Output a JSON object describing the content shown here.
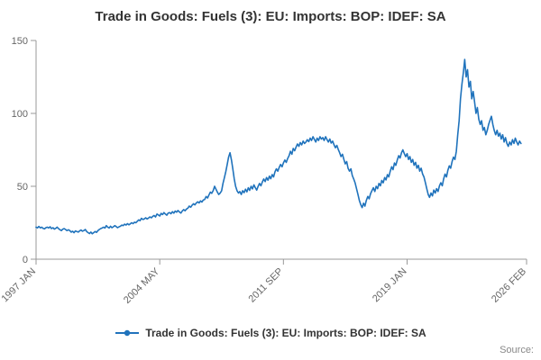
{
  "title": "Trade in Goods: Fuels (3): EU: Imports: BOP: IDEF: SA",
  "legend": {
    "label": "Trade in Goods: Fuels (3): EU: Imports: BOP: IDEF: SA"
  },
  "footer": {
    "source_label": "Source:"
  },
  "chart_data": {
    "type": "line",
    "title": "Trade in Goods: Fuels (3): EU: Imports: BOP: IDEF: SA",
    "xlabel": "",
    "ylabel": "",
    "series_name": "Trade in Goods: Fuels (3): EU: Imports: BOP: IDEF: SA",
    "series_color": "#2073bc",
    "axis_color": "#999999",
    "tick_label_color": "#666666",
    "grid": "off",
    "legend_position": "bottom-center",
    "ylim": [
      0,
      150
    ],
    "yticks": [
      0,
      50,
      100,
      150
    ],
    "x_total_months": 349,
    "x_ticks": [
      {
        "pos": 0,
        "label": "1997 JAN"
      },
      {
        "pos": 88,
        "label": "2004 MAY"
      },
      {
        "pos": 176,
        "label": "2011 SEP"
      },
      {
        "pos": 264,
        "label": "2019 JAN"
      },
      {
        "pos": 349,
        "label": "2026 FEB"
      }
    ],
    "x_start_label": "1997 JAN",
    "x_end_label": "2026 FEB",
    "values": [
      22,
      21.5,
      22.5,
      21.5,
      22,
      21.2,
      20.8,
      21.6,
      22,
      21.4,
      22.2,
      21,
      21.6,
      20.6,
      21.2,
      22,
      21,
      20.2,
      19.6,
      20.6,
      21,
      20.4,
      19.6,
      20.2,
      19.6,
      18.6,
      19.2,
      18.2,
      19.4,
      19,
      18.6,
      19.4,
      20,
      19.2,
      19.6,
      20.4,
      19,
      18.2,
      17.6,
      18.6,
      17.4,
      18.2,
      19,
      18.4,
      19.6,
      20.4,
      21,
      21.4,
      22,
      21.4,
      23,
      22,
      21.4,
      22.6,
      21.6,
      22.2,
      23,
      22.4,
      21.6,
      22.2,
      22.6,
      23.4,
      23,
      24,
      23.4,
      24.4,
      23.6,
      24.2,
      25,
      24.4,
      25.4,
      25,
      26,
      27,
      26.4,
      28,
      27.2,
      27.6,
      28.4,
      27.6,
      28.2,
      29,
      28.4,
      29.4,
      30,
      29,
      31,
      30.4,
      29.6,
      31.4,
      30.6,
      32,
      31,
      30.2,
      31.6,
      32,
      31.2,
      32.6,
      31.6,
      33,
      32.2,
      33.4,
      32.4,
      31.6,
      33,
      34,
      33.2,
      34.4,
      35,
      36.4,
      35.6,
      37,
      38,
      37.2,
      38.6,
      39.4,
      38.6,
      40,
      39.2,
      40.6,
      41,
      43,
      42,
      44,
      46,
      45.2,
      47,
      50,
      48,
      46,
      44.4,
      45.4,
      47,
      52,
      56,
      60,
      65,
      70,
      73,
      68,
      62,
      55,
      50,
      47,
      45.4,
      46.4,
      44.4,
      47,
      45.6,
      48,
      46.2,
      49,
      47.2,
      50,
      48.2,
      51,
      49,
      47.4,
      50,
      52,
      50.4,
      53,
      55,
      53.2,
      56,
      54.2,
      57,
      55.2,
      58,
      56.4,
      60,
      62,
      60.4,
      63,
      65,
      63.4,
      66,
      68,
      66.4,
      69,
      71,
      74,
      72,
      76,
      74.4,
      77,
      79,
      77.4,
      80,
      78.4,
      81,
      79.4,
      80.4,
      82,
      80.6,
      83,
      81.4,
      84,
      82.2,
      80.4,
      83,
      81.4,
      84,
      82.4,
      83.4,
      81.4,
      84,
      82,
      80.4,
      82.4,
      79.6,
      81,
      78.4,
      76.4,
      78,
      75.4,
      73,
      70.4,
      72,
      68.4,
      65.4,
      67,
      62.4,
      60.4,
      62,
      57.4,
      55,
      52.4,
      48.4,
      44.4,
      40.4,
      37.4,
      35.4,
      38.4,
      36.4,
      40.4,
      43,
      41.4,
      45,
      47,
      49,
      46.4,
      50,
      48.4,
      52,
      50.4,
      54,
      52.4,
      56,
      54.4,
      58,
      56.4,
      60.4,
      63.4,
      61.4,
      66,
      64.4,
      68,
      71,
      69.4,
      73,
      75,
      72.4,
      70.4,
      72.4,
      68.4,
      70.4,
      66.4,
      68.4,
      64.4,
      66.4,
      62.4,
      64.4,
      60.4,
      62.4,
      58.4,
      56.4,
      52.4,
      48.4,
      44.4,
      42.4,
      45.4,
      43.4,
      47.4,
      45.4,
      48.4,
      46.4,
      50.4,
      52.4,
      50.4,
      55,
      58.4,
      56.4,
      61,
      64,
      62.4,
      67,
      70,
      68.4,
      74,
      85,
      95,
      110,
      120,
      128,
      137,
      125,
      130,
      118,
      122,
      110,
      115,
      108,
      100,
      104,
      96,
      92.4,
      95,
      88.4,
      90.4,
      85.4,
      88.4,
      92.4,
      95.4,
      98,
      92.4,
      88.4,
      85.4,
      88.4,
      84.4,
      86.4,
      82.4,
      85.4,
      80.4,
      83.4,
      79.4,
      77.4,
      80.4,
      78.4,
      82,
      79.4,
      83,
      80.4,
      78.4,
      81,
      79.4
    ]
  }
}
